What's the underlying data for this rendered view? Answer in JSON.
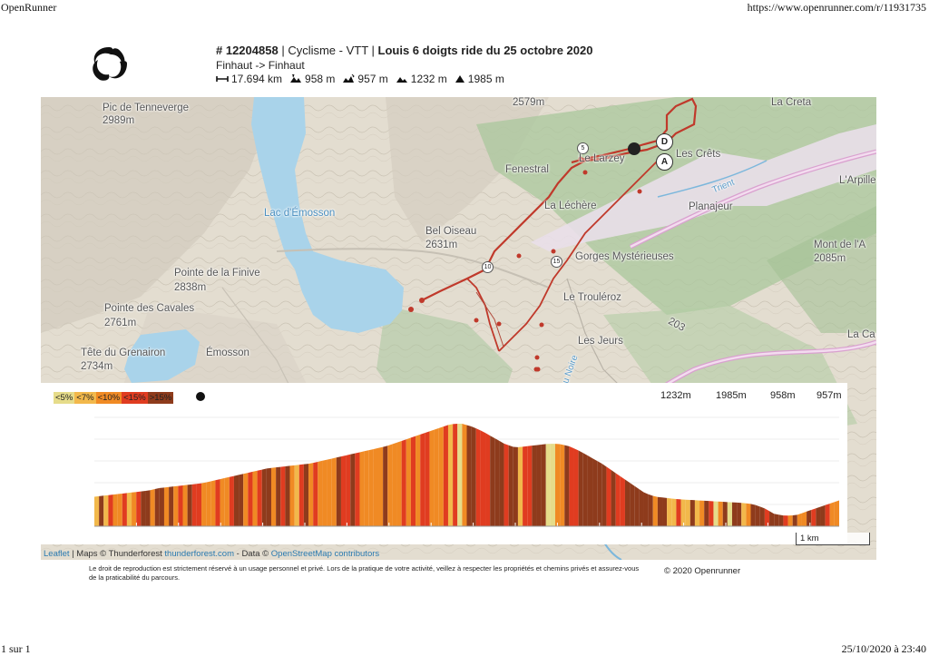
{
  "print_header": {
    "left": "OpenRunner",
    "right": "https://www.openrunner.com/r/11931735"
  },
  "print_footer": {
    "left": "1 sur 1",
    "right": "25/10/2020 à 23:40"
  },
  "route": {
    "id": "# 12204858",
    "activity": "Cyclisme - VTT",
    "name": "Louis 6 doigts ride du 25 octobre 2020",
    "from_to": "Finhaut -> Finhaut",
    "distance": "17.694 km",
    "ascent": "958 m",
    "descent": "957 m",
    "min_alt": "1232 m",
    "max_alt": "1985 m"
  },
  "map": {
    "labels": [
      {
        "id": "pic-tenneverge",
        "text": "Pic de Tenneverge"
      },
      {
        "id": "pic-tenneverge-alt",
        "text": "2989m"
      },
      {
        "id": "lac-emosson",
        "text": "Lac d'Émosson"
      },
      {
        "id": "pointe-finive",
        "text": "Pointe de la Finive"
      },
      {
        "id": "pointe-finive-alt",
        "text": "2838m"
      },
      {
        "id": "pointe-cavales",
        "text": "Pointe des Cavales"
      },
      {
        "id": "pointe-cavales-alt",
        "text": "2761m"
      },
      {
        "id": "tete-grenairon",
        "text": "Tête du Grenairon"
      },
      {
        "id": "tete-grenairon-alt",
        "text": "2734m"
      },
      {
        "id": "emosson",
        "text": "Émosson"
      },
      {
        "id": "bel-oiseau",
        "text": "Bel Oiseau"
      },
      {
        "id": "bel-oiseau-alt",
        "text": "2631m"
      },
      {
        "id": "alt-2579",
        "text": "2579m"
      },
      {
        "id": "fenestral",
        "text": "Fenestral"
      },
      {
        "id": "le-larzey",
        "text": "Le Larzey"
      },
      {
        "id": "les-crets",
        "text": "Les Crêts"
      },
      {
        "id": "la-creta",
        "text": "La Creta"
      },
      {
        "id": "trient",
        "text": "Trient"
      },
      {
        "id": "larpille",
        "text": "L'Arpille"
      },
      {
        "id": "la-lechere",
        "text": "La Léchère"
      },
      {
        "id": "planajeur",
        "text": "Planajeur"
      },
      {
        "id": "gorges",
        "text": "Gorges Mystérieuses"
      },
      {
        "id": "mont-de-la",
        "text": "Mont de l'A"
      },
      {
        "id": "mont-alt",
        "text": "2085m"
      },
      {
        "id": "le-trouleroz",
        "text": "Le Trouléroz"
      },
      {
        "id": "road-203",
        "text": "203"
      },
      {
        "id": "les-jeurs",
        "text": "Les Jeurs"
      },
      {
        "id": "la-ca",
        "text": "La Ca"
      },
      {
        "id": "eau-noire",
        "text": "Eau Noire"
      }
    ],
    "waypoints": {
      "start": "D",
      "end": "A",
      "km5": "5",
      "km10": "10",
      "km15": "15"
    },
    "colors": {
      "track": "#c0392b",
      "lake": "#a9d3ea",
      "forest": "#a6c59a"
    }
  },
  "profile": {
    "legend": [
      {
        "label": "<5%",
        "color": "#e6dc8a"
      },
      {
        "label": "<7%",
        "color": "#f2b84b"
      },
      {
        "label": "<10%",
        "color": "#f08a24"
      },
      {
        "label": "<15%",
        "color": "#e03c20"
      },
      {
        "label": ">15%",
        "color": "#8e3b1c"
      }
    ],
    "stats": [
      "1232m",
      "1985m",
      "958m",
      "957m"
    ],
    "distance_km": 17.694,
    "elevation": [
      1390,
      1400,
      1410,
      1420,
      1430,
      1440,
      1460,
      1470,
      1480,
      1490,
      1500,
      1520,
      1540,
      1560,
      1580,
      1600,
      1620,
      1630,
      1640,
      1650,
      1660,
      1680,
      1700,
      1720,
      1740,
      1760,
      1780,
      1800,
      1830,
      1860,
      1890,
      1920,
      1950,
      1980,
      1985,
      1960,
      1920,
      1870,
      1820,
      1790,
      1800,
      1810,
      1820,
      1820,
      1800,
      1760,
      1710,
      1660,
      1600,
      1540,
      1480,
      1420,
      1390,
      1380,
      1370,
      1365,
      1360,
      1355,
      1350,
      1345,
      1340,
      1330,
      1300,
      1250,
      1235,
      1240,
      1270,
      1300,
      1330,
      1360
    ],
    "scale_label": "1 km"
  },
  "attribution": {
    "leaflet": "Leaflet",
    "maps": "| Maps ©",
    "thunderforest": "Thunderforest",
    "tf_link": "thunderforest.com",
    "data": "- Data ©",
    "osm": "OpenStreetMap contributors"
  },
  "disclaimer": "Le droit de reproduction est strictement réservé à un usage personnel et privé. Lors de la pratique de votre activité, veillez à respecter les propriétés et chemins privés et assurez-vous de la praticabilité du parcours.",
  "copyright": "© 2020 Openrunner"
}
